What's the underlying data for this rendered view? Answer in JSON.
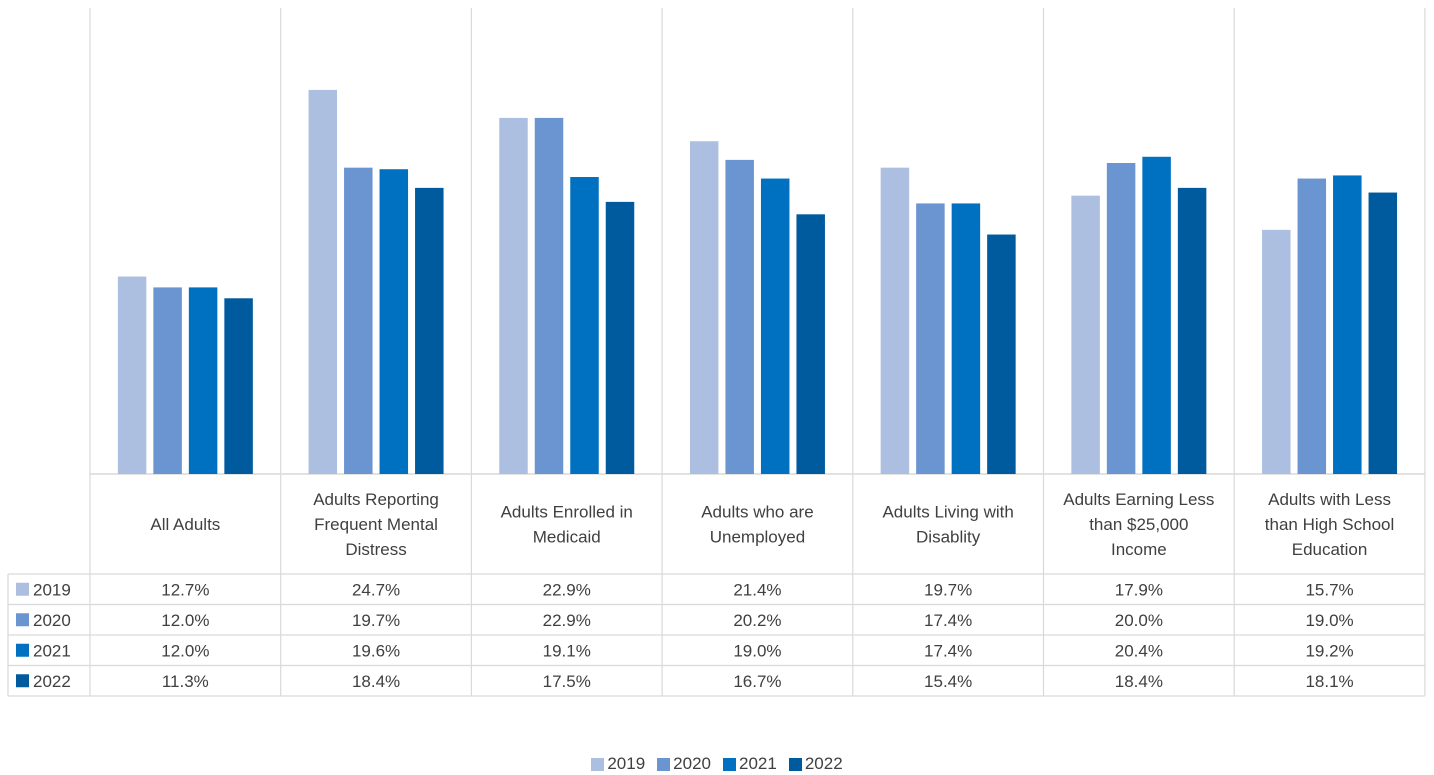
{
  "chart_data": {
    "type": "bar",
    "categories": [
      "All Adults",
      "Adults Reporting Frequent Mental Distress",
      "Adults Enrolled in Medicaid",
      "Adults who are Unemployed",
      "Adults Living with Disablity",
      "Adults Earning Less than $25,000 Income",
      "Adults with Less than High School Education"
    ],
    "category_lines": [
      [
        "All Adults"
      ],
      [
        "Adults Reporting",
        "Frequent Mental",
        "Distress"
      ],
      [
        "Adults Enrolled in",
        "Medicaid"
      ],
      [
        "Adults who are",
        "Unemployed"
      ],
      [
        "Adults Living with",
        "Disablity"
      ],
      [
        "Adults Earning Less",
        "than $25,000",
        "Income"
      ],
      [
        "Adults with Less",
        "than High School",
        "Education"
      ]
    ],
    "series": [
      {
        "name": "2019",
        "color": "#adbfe1",
        "values": [
          12.7,
          24.7,
          22.9,
          21.4,
          19.7,
          17.9,
          15.7
        ],
        "labels": [
          "12.7%",
          "24.7%",
          "22.9%",
          "21.4%",
          "19.7%",
          "17.9%",
          "15.7%"
        ]
      },
      {
        "name": "2020",
        "color": "#6a95d1",
        "values": [
          12.0,
          19.7,
          22.9,
          20.2,
          17.4,
          20.0,
          19.0
        ],
        "labels": [
          "12.0%",
          "19.7%",
          "22.9%",
          "20.2%",
          "17.4%",
          "20.0%",
          "19.0%"
        ]
      },
      {
        "name": "2021",
        "color": "#0070c0",
        "values": [
          12.0,
          19.6,
          19.1,
          19.0,
          17.4,
          20.4,
          19.2
        ],
        "labels": [
          "12.0%",
          "19.6%",
          "19.1%",
          "19.0%",
          "17.4%",
          "20.4%",
          "19.2%"
        ]
      },
      {
        "name": "2022",
        "color": "#005a9e",
        "values": [
          11.3,
          18.4,
          17.5,
          16.7,
          15.4,
          18.4,
          18.1
        ],
        "labels": [
          "11.3%",
          "18.4%",
          "17.5%",
          "16.7%",
          "15.4%",
          "18.4%",
          "18.1%"
        ]
      }
    ],
    "ylim": [
      0,
      30
    ],
    "grid": false,
    "legend": "bottom",
    "data_table": true
  }
}
